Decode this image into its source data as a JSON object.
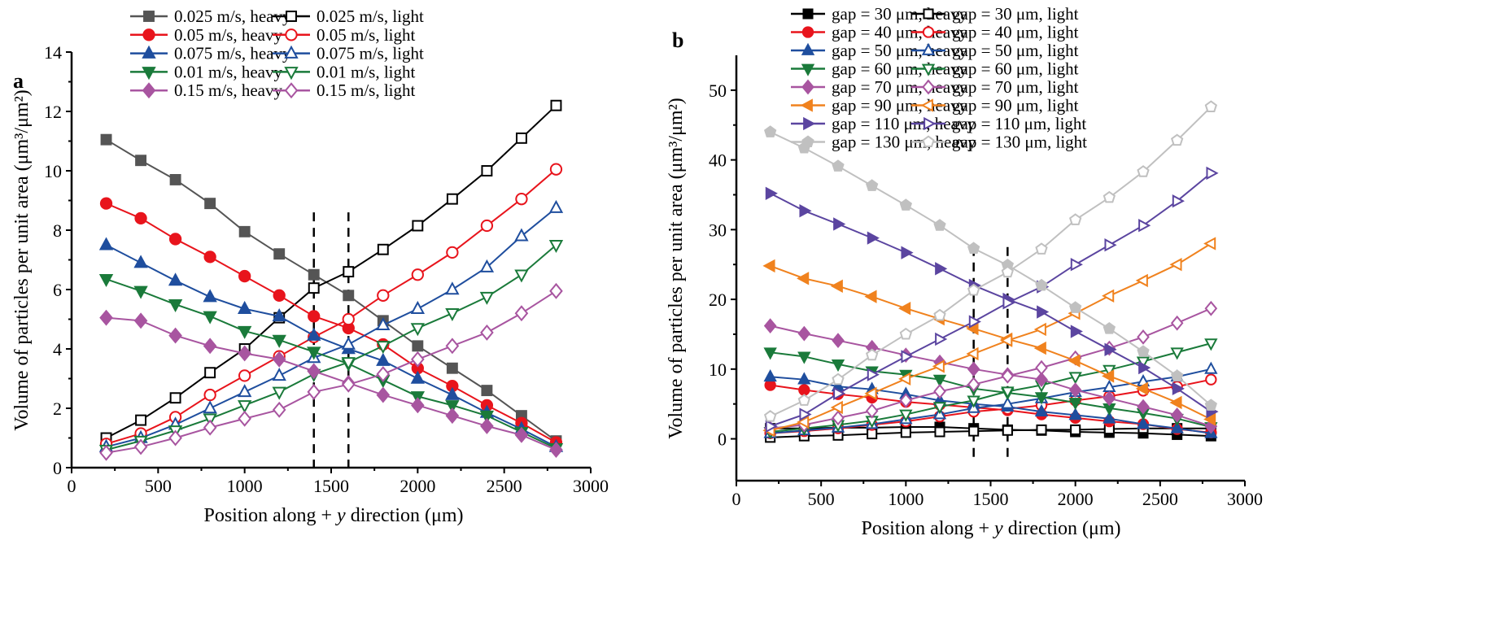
{
  "chart_data": [
    {
      "panel_label": "a",
      "type": "line",
      "xlabel_pre": "Position along + ",
      "xlabel_var": "y",
      "xlabel_post": " direction (μm)",
      "ylabel": "Volume of particles per unit area (μm³/μm²)",
      "xlim": [
        0,
        3000
      ],
      "ylim": [
        0,
        14
      ],
      "xticks": [
        0,
        500,
        1000,
        1500,
        2000,
        2500,
        3000
      ],
      "yticks": [
        0,
        2,
        4,
        6,
        8,
        10,
        12,
        14
      ],
      "grid": false,
      "legend_placement": "top",
      "reference_lines_x": [
        1400,
        1600
      ],
      "reference_lines_y_extent": [
        0,
        8.6
      ],
      "x": [
        200,
        400,
        600,
        800,
        1000,
        1200,
        1400,
        1600,
        1800,
        2000,
        2200,
        2400,
        2600,
        2800
      ],
      "series": [
        {
          "name": "0.025 m/s, heavy",
          "color": "#555555",
          "marker": "square",
          "filled": true,
          "values": [
            11.05,
            10.35,
            9.7,
            8.9,
            7.95,
            7.2,
            6.5,
            5.8,
            4.95,
            4.1,
            3.35,
            2.6,
            1.75,
            0.9
          ]
        },
        {
          "name": "0.025 m/s, light",
          "color": "#000000",
          "marker": "square",
          "filled": false,
          "values": [
            1.0,
            1.6,
            2.35,
            3.2,
            4.0,
            5.05,
            6.05,
            6.6,
            7.35,
            8.15,
            9.05,
            10.0,
            11.1,
            12.2
          ]
        },
        {
          "name": "0.05 m/s, heavy",
          "color": "#e8141c",
          "marker": "circle",
          "filled": true,
          "values": [
            8.9,
            8.4,
            7.7,
            7.1,
            6.45,
            5.8,
            5.1,
            4.7,
            4.15,
            3.35,
            2.75,
            2.1,
            1.5,
            0.85
          ]
        },
        {
          "name": "0.05 m/s, light",
          "color": "#e8141c",
          "marker": "circle",
          "filled": false,
          "values": [
            0.8,
            1.15,
            1.7,
            2.45,
            3.1,
            3.75,
            4.4,
            5.0,
            5.8,
            6.5,
            7.25,
            8.15,
            9.05,
            10.05
          ]
        },
        {
          "name": "0.075 m/s, heavy",
          "color": "#1f4e9e",
          "marker": "triangle-up",
          "filled": true,
          "values": [
            7.5,
            6.9,
            6.3,
            5.75,
            5.35,
            5.1,
            4.45,
            4.0,
            3.6,
            3.0,
            2.45,
            1.85,
            1.3,
            0.7
          ]
        },
        {
          "name": "0.075 m/s, light",
          "color": "#1f4e9e",
          "marker": "triangle-up",
          "filled": false,
          "values": [
            0.7,
            1.0,
            1.45,
            2.0,
            2.55,
            3.1,
            3.7,
            4.15,
            4.8,
            5.35,
            6.0,
            6.75,
            7.8,
            8.75
          ]
        },
        {
          "name": "0.01 m/s, heavy",
          "color": "#1a7a3a",
          "marker": "triangle-down",
          "filled": true,
          "values": [
            6.35,
            5.95,
            5.5,
            5.1,
            4.6,
            4.3,
            3.9,
            3.5,
            2.95,
            2.4,
            2.1,
            1.75,
            1.2,
            0.65
          ]
        },
        {
          "name": "0.01 m/s, light",
          "color": "#1a7a3a",
          "marker": "triangle-down",
          "filled": false,
          "values": [
            0.6,
            0.9,
            1.25,
            1.65,
            2.1,
            2.55,
            3.15,
            3.55,
            4.1,
            4.7,
            5.2,
            5.75,
            6.5,
            7.5
          ]
        },
        {
          "name": "0.15 m/s, heavy",
          "color": "#a855a0",
          "marker": "diamond",
          "filled": true,
          "values": [
            5.05,
            4.95,
            4.45,
            4.1,
            3.85,
            3.65,
            3.25,
            2.85,
            2.45,
            2.1,
            1.75,
            1.4,
            1.1,
            0.6
          ]
        },
        {
          "name": "0.15 m/s, light",
          "color": "#a855a0",
          "marker": "diamond",
          "filled": false,
          "values": [
            0.5,
            0.7,
            1.0,
            1.35,
            1.65,
            1.95,
            2.55,
            2.8,
            3.15,
            3.65,
            4.1,
            4.55,
            5.2,
            5.95
          ]
        }
      ]
    },
    {
      "panel_label": "b",
      "type": "line",
      "xlabel_pre": "Position along + ",
      "xlabel_var": "y",
      "xlabel_post": " direction (μm)",
      "ylabel": "Volume of particles per unit area (μm³/μm²)",
      "xlim": [
        0,
        3000
      ],
      "ylim": [
        -6,
        55
      ],
      "xticks": [
        0,
        500,
        1000,
        1500,
        2000,
        2500,
        3000
      ],
      "yticks": [
        0,
        10,
        20,
        30,
        40,
        50
      ],
      "grid": false,
      "legend_placement": "top",
      "reference_lines_x": [
        1400,
        1600
      ],
      "reference_lines_y_extent": [
        -3,
        27.5
      ],
      "x": [
        200,
        400,
        600,
        800,
        1000,
        1200,
        1400,
        1600,
        1800,
        2000,
        2200,
        2400,
        2600,
        2800
      ],
      "series": [
        {
          "name": "gap = 30 μm, heavy",
          "color": "#000000",
          "marker": "square",
          "filled": true,
          "values": [
            1.5,
            1.5,
            1.6,
            1.6,
            1.7,
            1.7,
            1.5,
            1.3,
            1.2,
            1.0,
            0.9,
            0.8,
            0.6,
            0.4
          ]
        },
        {
          "name": "gap = 30 μm, light",
          "color": "#000000",
          "marker": "square",
          "filled": false,
          "values": [
            0.2,
            0.4,
            0.5,
            0.7,
            0.9,
            1.0,
            1.1,
            1.2,
            1.3,
            1.3,
            1.4,
            1.5,
            1.5,
            1.5
          ]
        },
        {
          "name": "gap = 40 μm, heavy",
          "color": "#e8141c",
          "marker": "circle",
          "filled": true,
          "values": [
            7.7,
            7.0,
            6.4,
            5.9,
            5.3,
            4.9,
            4.5,
            4.1,
            3.5,
            3.0,
            2.5,
            2.1,
            1.4,
            0.9
          ]
        },
        {
          "name": "gap = 40 μm, light",
          "color": "#e8141c",
          "marker": "circle",
          "filled": false,
          "values": [
            0.8,
            1.1,
            1.5,
            2.0,
            2.5,
            3.2,
            3.9,
            4.3,
            4.8,
            5.5,
            6.1,
            6.9,
            7.5,
            8.5
          ]
        },
        {
          "name": "gap = 50 μm, heavy",
          "color": "#1f4e9e",
          "marker": "triangle-up",
          "filled": true,
          "values": [
            8.9,
            8.5,
            7.5,
            7.1,
            6.4,
            5.5,
            5.0,
            4.6,
            3.9,
            3.4,
            2.9,
            2.1,
            1.5,
            0.8
          ]
        },
        {
          "name": "gap = 50 μm, light",
          "color": "#1f4e9e",
          "marker": "triangle-up",
          "filled": false,
          "values": [
            0.8,
            1.2,
            1.6,
            2.1,
            2.8,
            3.5,
            4.4,
            5.0,
            5.8,
            6.7,
            7.4,
            8.2,
            8.9,
            10.0
          ]
        },
        {
          "name": "gap = 60 μm, heavy",
          "color": "#1a7a3a",
          "marker": "triangle-down",
          "filled": true,
          "values": [
            12.4,
            11.8,
            10.7,
            9.7,
            9.2,
            8.5,
            7.2,
            6.6,
            6.0,
            5.2,
            4.4,
            3.7,
            2.9,
            1.7
          ]
        },
        {
          "name": "gap = 60 μm, light",
          "color": "#1a7a3a",
          "marker": "triangle-down",
          "filled": false,
          "values": [
            1.0,
            1.5,
            2.0,
            2.6,
            3.5,
            4.6,
            5.5,
            6.8,
            7.7,
            8.9,
            9.9,
            11.1,
            12.4,
            13.7
          ]
        },
        {
          "name": "gap = 70 μm, heavy",
          "color": "#a855a0",
          "marker": "diamond",
          "filled": true,
          "values": [
            16.2,
            15.1,
            14.1,
            13.1,
            12.0,
            11.0,
            10.0,
            9.2,
            8.5,
            7.0,
            5.8,
            4.6,
            3.4,
            1.8
          ]
        },
        {
          "name": "gap = 70 μm, light",
          "color": "#a855a0",
          "marker": "diamond",
          "filled": false,
          "values": [
            1.5,
            2.0,
            3.0,
            4.0,
            5.5,
            6.8,
            7.8,
            9.0,
            10.2,
            11.6,
            13.0,
            14.6,
            16.6,
            18.7
          ]
        },
        {
          "name": "gap = 90 μm, heavy",
          "color": "#f0821e",
          "marker": "triangle-left",
          "filled": true,
          "values": [
            24.8,
            23.0,
            21.9,
            20.4,
            18.7,
            17.2,
            15.8,
            14.3,
            13.0,
            11.2,
            9.0,
            7.2,
            5.2,
            2.8
          ]
        },
        {
          "name": "gap = 90 μm, light",
          "color": "#f0821e",
          "marker": "triangle-left",
          "filled": false,
          "values": [
            1.2,
            2.4,
            4.5,
            6.5,
            8.6,
            10.4,
            12.2,
            14.1,
            15.7,
            18.0,
            20.5,
            22.7,
            25.0,
            28.0
          ]
        },
        {
          "name": "gap = 110 μm, heavy",
          "color": "#5b45a0",
          "marker": "triangle-right",
          "filled": true,
          "values": [
            35.2,
            32.7,
            30.8,
            28.8,
            26.7,
            24.4,
            22.0,
            20.0,
            18.2,
            15.4,
            12.8,
            10.2,
            7.2,
            3.9
          ]
        },
        {
          "name": "gap = 110 μm, light",
          "color": "#5b45a0",
          "marker": "triangle-right",
          "filled": false,
          "values": [
            1.8,
            3.5,
            6.5,
            9.2,
            11.8,
            14.3,
            16.8,
            19.5,
            21.8,
            25.0,
            27.8,
            30.6,
            34.1,
            38.1
          ]
        },
        {
          "name": "gap = 130 μm, heavy",
          "color": "#c0c0c0",
          "marker": "pentagon",
          "filled": true,
          "values": [
            44.0,
            41.7,
            39.1,
            36.3,
            33.5,
            30.6,
            27.3,
            24.9,
            22.0,
            18.8,
            15.8,
            12.5,
            9.0,
            4.8
          ]
        },
        {
          "name": "gap = 130 μm, light",
          "color": "#c0c0c0",
          "marker": "pentagon",
          "filled": false,
          "values": [
            3.2,
            5.5,
            8.5,
            12.0,
            15.0,
            17.7,
            21.3,
            23.9,
            27.2,
            31.4,
            34.6,
            38.3,
            42.8,
            47.6
          ]
        }
      ]
    }
  ]
}
